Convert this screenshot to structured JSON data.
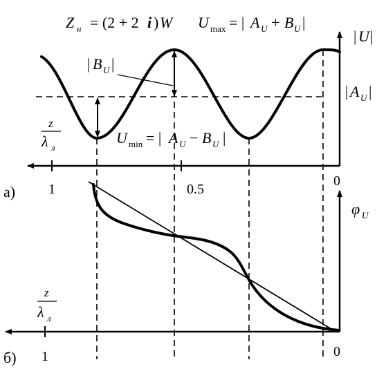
{
  "header": {
    "load_impedance": "Z_н = (2 + 2i)W",
    "u_max_formula": "U_max = |A_U + B_U|"
  },
  "panel_a": {
    "panel_label": "а)",
    "y_axis_label": "|U|",
    "a_u_label": "|A_U|",
    "b_u_label": "|B_U|",
    "u_min_formula": "U_min = |A_U − B_U|",
    "x_axis_label": "z/λл",
    "x_ticks": [
      "1",
      "0.5",
      "0"
    ]
  },
  "panel_b": {
    "panel_label": "б)",
    "y_axis_label": "φ_U",
    "x_axis_label": "z/λл",
    "x_ticks": [
      "1",
      "0"
    ]
  }
}
